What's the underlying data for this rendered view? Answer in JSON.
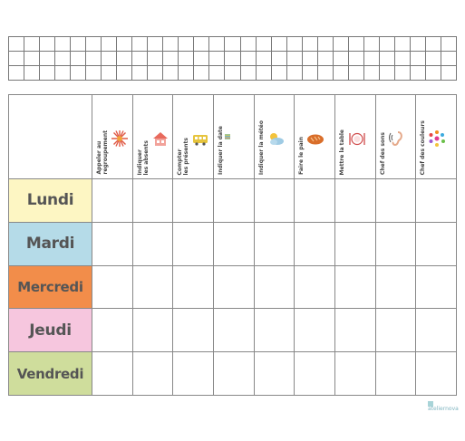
{
  "tasks": [
    {
      "label": "Appeler au\nregroupement",
      "icon": "sun-burst-icon",
      "color": "#e05a47"
    },
    {
      "label": "Indiquer\nles absents",
      "icon": "house-icon",
      "color": "#e86a5d"
    },
    {
      "label": "Compter\nles présents",
      "icon": "bus-icon",
      "color": "#e6c43d"
    },
    {
      "label": "Indiquer la date",
      "icon": "calendar-strip-icon",
      "color": "#6aa7c8"
    },
    {
      "label": "Indiquer la météo",
      "icon": "sun-cloud-icon",
      "color": "#79b6d9"
    },
    {
      "label": "Faire le pain",
      "icon": "bread-icon",
      "color": "#d96e2a"
    },
    {
      "label": "Mettre la table",
      "icon": "plate-icon",
      "color": "#d04a4a"
    },
    {
      "label": "Chef des sons",
      "icon": "ear-sound-icon",
      "color": "#e5a98a"
    },
    {
      "label": "Chef des couleurs",
      "icon": "color-splash-icon",
      "color": "#e23c8e"
    }
  ],
  "days": [
    {
      "label": "Lundi",
      "color": "#fdf6c3"
    },
    {
      "label": "Mardi",
      "color": "#b5dbe8"
    },
    {
      "label": "Mercredi",
      "color": "#f28d4a"
    },
    {
      "label": "Jeudi",
      "color": "#f6c6de"
    },
    {
      "label": "Vendredi",
      "color": "#cfdd9c"
    }
  ],
  "logo": {
    "text": "ateliernova"
  }
}
